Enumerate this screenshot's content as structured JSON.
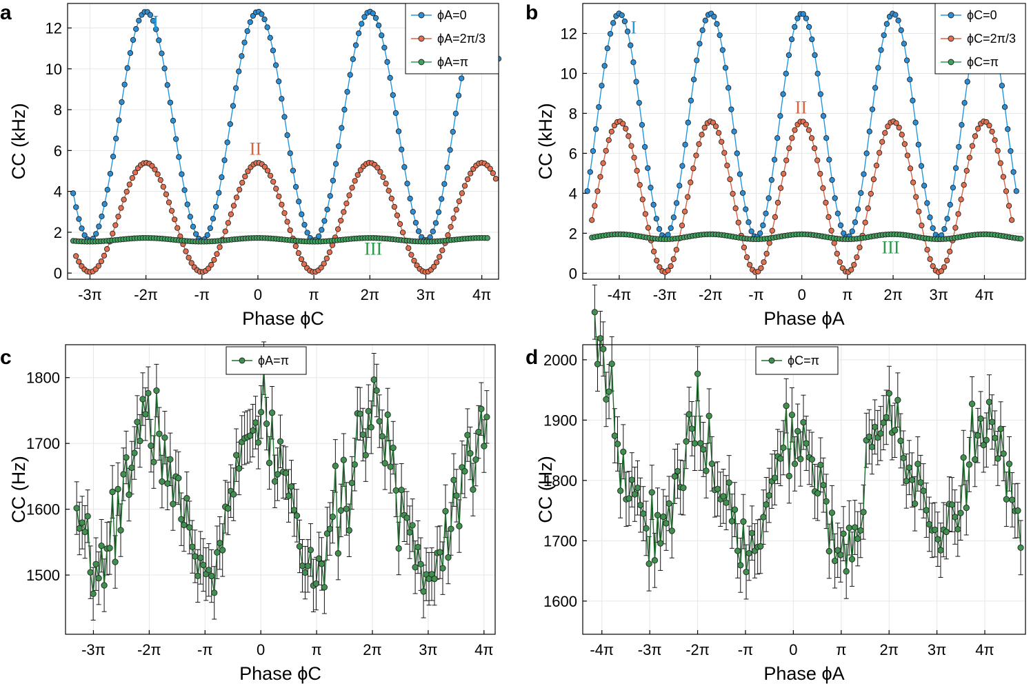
{
  "chart_data": [
    {
      "panel": "a",
      "type": "line",
      "xlabel": "Phase ϕC",
      "ylabel": "CC (kHz)",
      "xlim": [
        -3.4,
        4.3
      ],
      "ylim": [
        -0.3,
        13.2
      ],
      "x_unit": "pi",
      "xticks": [
        -3,
        -2,
        -1,
        0,
        1,
        2,
        3,
        4
      ],
      "xtick_labels": [
        "-3π",
        "-2π",
        "-π",
        "0",
        "π",
        "2π",
        "3π",
        "4π"
      ],
      "yticks": [
        0,
        2,
        4,
        6,
        8,
        10,
        12
      ],
      "ytick_labels": [
        "0",
        "2",
        "4",
        "6",
        "8",
        "10",
        "12"
      ],
      "legend": {
        "position": "top-right"
      },
      "series": [
        {
          "name": "ϕA=0",
          "color": "#1f97e0",
          "fill": "#2c8fd6",
          "model": {
            "kind": "cos",
            "min": 1.6,
            "max": 12.8,
            "period": 2,
            "phase": 0,
            "x_start": -3.3,
            "x_end": 4.3,
            "n": 150
          }
        },
        {
          "name": "ϕA=2π/3",
          "color": "#d8633e",
          "fill": "#e07050",
          "model": {
            "kind": "cos",
            "min": 0.05,
            "max": 5.4,
            "period": 2,
            "phase": 0,
            "x_start": -3.25,
            "x_end": 4.25,
            "n": 150
          }
        },
        {
          "name": "ϕA=π",
          "color": "#2a9a4a",
          "fill": "#3f9f5c",
          "model": {
            "kind": "cos",
            "min": 1.54,
            "max": 1.72,
            "period": 2,
            "phase": 0,
            "x_start": -3.3,
            "x_end": 4.1,
            "n": 150
          }
        }
      ],
      "annotations": [
        {
          "text": "I",
          "x": -1.88,
          "y": 12.0,
          "color": "#1f97e0"
        },
        {
          "text": "II",
          "x": -0.15,
          "y": 5.8,
          "color": "#d8633e"
        },
        {
          "text": "III",
          "x": 1.9,
          "y": 0.9,
          "color": "#2a9a4a"
        }
      ]
    },
    {
      "panel": "b",
      "type": "line",
      "xlabel": "Phase ϕA",
      "ylabel": "CC (kHz)",
      "xlim": [
        -4.8,
        4.9
      ],
      "ylim": [
        -0.3,
        13.5
      ],
      "x_unit": "pi",
      "xticks": [
        -4,
        -3,
        -2,
        -1,
        0,
        1,
        2,
        3,
        4
      ],
      "xtick_labels": [
        "-4π",
        "-3π",
        "-2π",
        "-π",
        "0",
        "π",
        "2π",
        "3π",
        "4π"
      ],
      "yticks": [
        0,
        2,
        4,
        6,
        8,
        10,
        12
      ],
      "ytick_labels": [
        "0",
        "2",
        "4",
        "6",
        "8",
        "10",
        "12"
      ],
      "legend": {
        "position": "top-right"
      },
      "series": [
        {
          "name": "ϕC=0",
          "color": "#1f97e0",
          "fill": "#2c8fd6",
          "model": {
            "kind": "cos",
            "min": 1.8,
            "max": 13.0,
            "period": 2,
            "phase": 0,
            "x_start": -4.7,
            "x_end": 4.7,
            "n": 150
          }
        },
        {
          "name": "ϕC=2π/3",
          "color": "#d8633e",
          "fill": "#e07050",
          "model": {
            "kind": "cos",
            "min": 0.05,
            "max": 7.6,
            "period": 2,
            "phase": 0,
            "x_start": -4.6,
            "x_end": 4.6,
            "n": 150
          }
        },
        {
          "name": "ϕC=π",
          "color": "#2a9a4a",
          "fill": "#3f9f5c",
          "model": {
            "kind": "cos",
            "min": 1.7,
            "max": 1.95,
            "period": 2,
            "phase": 0,
            "x_start": -4.6,
            "x_end": 4.8,
            "n": 150
          }
        }
      ],
      "annotations": [
        {
          "text": "I",
          "x": -3.75,
          "y": 12.0,
          "color": "#1f97e0"
        },
        {
          "text": "II",
          "x": -0.15,
          "y": 8.0,
          "color": "#d8633e"
        },
        {
          "text": "III",
          "x": 1.75,
          "y": 1.0,
          "color": "#2a9a4a"
        }
      ]
    },
    {
      "panel": "c",
      "type": "scatter",
      "xlabel": "Phase ϕC",
      "ylabel": "CC (Hz)",
      "xlim": [
        -3.5,
        4.2
      ],
      "ylim": [
        1410,
        1850
      ],
      "x_unit": "pi",
      "xticks": [
        -3,
        -2,
        -1,
        0,
        1,
        2,
        3,
        4
      ],
      "xtick_labels": [
        "-3π",
        "-2π",
        "-π",
        "0",
        "π",
        "2π",
        "3π",
        "4π"
      ],
      "yticks": [
        1500,
        1600,
        1700,
        1800
      ],
      "ytick_labels": [
        "1500",
        "1600",
        "1700",
        "1800"
      ],
      "legend": {
        "position": "top-center"
      },
      "series": [
        {
          "name": "ϕA=π",
          "color": "#1f6e2e",
          "fill": "#3f8f4f",
          "errorbar": 40,
          "model": {
            "kind": "cos",
            "min": 1510,
            "max": 1730,
            "period": 2,
            "phase": 0,
            "noise": 32,
            "seed": 7,
            "x_start": -3.3,
            "x_end": 4.05,
            "n": 150
          }
        }
      ]
    },
    {
      "panel": "d",
      "type": "scatter",
      "xlabel": "Phase ϕA",
      "ylabel": "CC (Hz)",
      "xlim": [
        -4.4,
        4.85
      ],
      "ylim": [
        1545,
        2025
      ],
      "x_unit": "pi",
      "xticks": [
        -4,
        -3,
        -2,
        -1,
        0,
        1,
        2,
        3,
        4
      ],
      "xtick_labels": [
        "-4π",
        "-3π",
        "-2π",
        "-π",
        "0",
        "π",
        "2π",
        "3π",
        "4π"
      ],
      "yticks": [
        1600,
        1700,
        1800,
        1900,
        2000
      ],
      "ytick_labels": [
        "1600",
        "1700",
        "1800",
        "1900",
        "2000"
      ],
      "legend": {
        "position": "top-center"
      },
      "series": [
        {
          "name": "ϕC=π",
          "color": "#1f6e2e",
          "fill": "#3f8f4f",
          "errorbar": 45,
          "model": {
            "kind": "cos",
            "min": 1700,
            "max": 1880,
            "period": 2,
            "phase": 0,
            "noise": 35,
            "seed": 19,
            "x_start": -4.15,
            "x_end": 4.75,
            "n": 150,
            "start_boost": 150
          }
        }
      ]
    }
  ],
  "panel_labels": [
    "a",
    "b",
    "c",
    "d"
  ]
}
